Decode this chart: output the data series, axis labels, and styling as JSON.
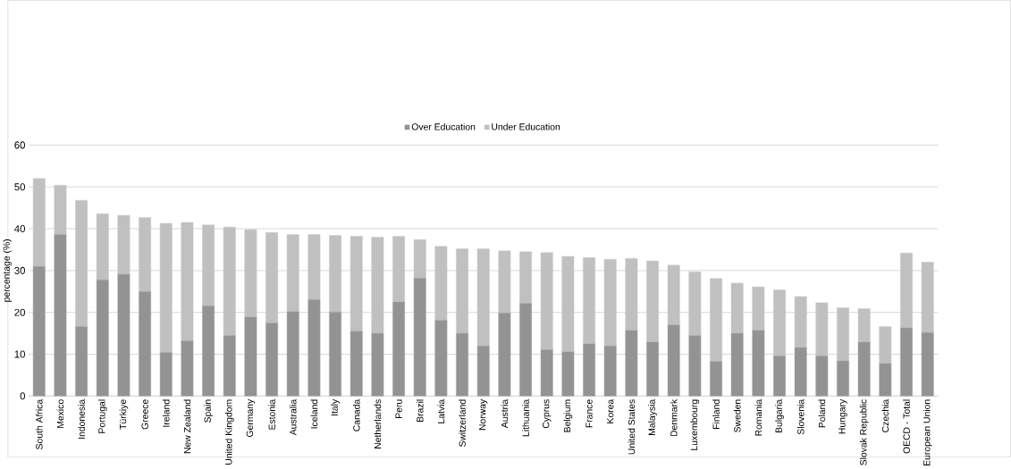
{
  "chart_data": {
    "type": "bar",
    "stacked": true,
    "ylabel": "percentage (%)",
    "ylim": [
      0,
      60
    ],
    "yticks": [
      0,
      10,
      20,
      30,
      40,
      50,
      60
    ],
    "grid": "y",
    "legend": "top",
    "categories": [
      "South Africa",
      "Mexico",
      "Indonesia",
      "Portugal",
      "Türkiye",
      "Greece",
      "Ireland",
      "New Zealand",
      "Spain",
      "United Kingdom",
      "Germany",
      "Estonia",
      "Australia",
      "Iceland",
      "Italy",
      "Canada",
      "Netherlands",
      "Peru",
      "Brazil",
      "Latvia",
      "Switzerland",
      "Norway",
      "Austria",
      "Lithuania",
      "Cyprus",
      "Belgium",
      "France",
      "Korea",
      "United States",
      "Malaysia",
      "Denmark",
      "Luxembourg",
      "Finland",
      "Sweden",
      "Romania",
      "Bulgaria",
      "Slovenia",
      "Poland",
      "Hungary",
      "Slovak Republic",
      "Czechia",
      "OECD - Total",
      "European Union"
    ],
    "series": [
      {
        "name": "Over Education",
        "color": "#939393",
        "values": [
          31,
          38.6,
          16.6,
          27.8,
          29.1,
          25,
          10.4,
          13.2,
          21.6,
          14.5,
          18.9,
          17.5,
          20.2,
          23.1,
          20.1,
          15.5,
          15,
          22.5,
          28.2,
          18.1,
          15,
          12,
          19.9,
          22.2,
          11.1,
          10.6,
          12.5,
          12,
          15.7,
          12.9,
          17,
          14.5,
          8.3,
          15,
          15.7,
          9.6,
          11.6,
          9.6,
          8.4,
          12.9,
          7.8,
          16.3,
          15.2
        ]
      },
      {
        "name": "Under Education",
        "color": "#c0c0c0",
        "values": [
          21,
          11.8,
          30.2,
          15.8,
          14.1,
          17.7,
          30.9,
          28.3,
          19.3,
          25.9,
          20.9,
          21.6,
          18.4,
          15.5,
          18.3,
          22.7,
          23,
          15.7,
          9.2,
          17.7,
          20.2,
          23.2,
          14.8,
          12.3,
          23.2,
          22.8,
          20.6,
          20.7,
          17.2,
          19.4,
          14.3,
          15.2,
          19.8,
          12,
          10.4,
          15.8,
          12.2,
          12.7,
          12.7,
          8,
          8.8,
          17.9,
          16.8
        ]
      }
    ]
  }
}
